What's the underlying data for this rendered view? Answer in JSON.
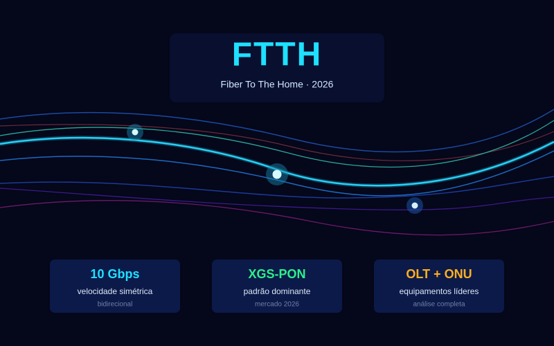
{
  "header": {
    "title": "FTTH",
    "subtitle": "Fiber To The Home · 2026"
  },
  "cards": [
    {
      "value": "10 Gbps",
      "label": "velocidade simétrica",
      "note": "bidirecional"
    },
    {
      "value": "XGS-PON",
      "label": "padrão dominante",
      "note": "mercado 2026"
    },
    {
      "value": "OLT + ONU",
      "label": "equipamentos líderes",
      "note": "análise completa"
    }
  ]
}
